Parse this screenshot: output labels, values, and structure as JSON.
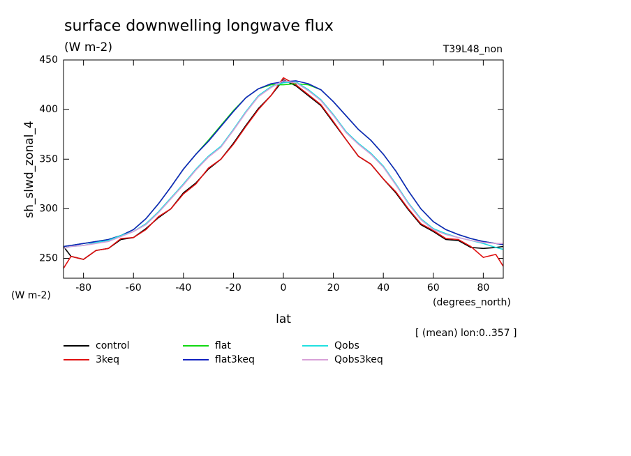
{
  "chart_data": {
    "type": "line",
    "title": "surface downwelling longwave flux",
    "subtitle": "(W m-2)",
    "run_label": "T39L48_non",
    "y_label": "sh_slwd_zonal_4",
    "y_units": "(W m-2)",
    "x_units": "(degrees_north)",
    "x_label": "lat",
    "annotation": "[ (mean) lon:0..357 ]",
    "legend": "bottom",
    "xlim": [
      -88,
      88
    ],
    "ylim": [
      230,
      450
    ],
    "xticks": [
      -80,
      -60,
      -40,
      -20,
      0,
      20,
      40,
      60,
      80
    ],
    "yticks": [
      250,
      300,
      350,
      400,
      450
    ],
    "x": [
      -88,
      -85,
      -80,
      -75,
      -70,
      -65,
      -60,
      -55,
      -50,
      -45,
      -40,
      -35,
      -30,
      -25,
      -20,
      -15,
      -10,
      -5,
      0,
      5,
      10,
      15,
      20,
      25,
      30,
      35,
      40,
      45,
      50,
      55,
      60,
      65,
      70,
      75,
      80,
      85,
      88
    ],
    "series": [
      {
        "name": "control",
        "color": "#000000",
        "values": [
          262,
          252,
          249,
          258,
          260,
          269,
          271,
          280,
          291,
          300,
          316,
          326,
          340,
          350,
          366,
          384,
          401,
          414,
          430,
          424,
          414,
          404,
          387,
          370,
          353,
          345,
          330,
          316,
          299,
          284,
          277,
          269,
          268,
          261,
          260,
          261,
          262
        ]
      },
      {
        "name": "3keq",
        "color": "#e01010",
        "values": [
          240,
          252,
          249,
          258,
          260,
          270,
          271,
          279,
          292,
          300,
          315,
          325,
          341,
          350,
          365,
          383,
          400,
          414,
          432,
          425,
          415,
          405,
          388,
          370,
          353,
          345,
          330,
          317,
          300,
          285,
          278,
          270,
          269,
          262,
          251,
          254,
          242
        ]
      },
      {
        "name": "flat",
        "color": "#10d810",
        "values": [
          262,
          263,
          265,
          267,
          269,
          273,
          279,
          290,
          305,
          322,
          340,
          355,
          369,
          384,
          399,
          412,
          421,
          425,
          425,
          426,
          425,
          420,
          408,
          394,
          380,
          369,
          355,
          338,
          318,
          300,
          287,
          279,
          274,
          270,
          267,
          265,
          264
        ]
      },
      {
        "name": "flat3keq",
        "color": "#1020c0",
        "values": [
          262,
          263,
          265,
          267,
          269,
          273,
          279,
          290,
          305,
          322,
          340,
          355,
          368,
          383,
          398,
          412,
          421,
          426,
          428,
          429,
          426,
          420,
          408,
          394,
          380,
          369,
          355,
          338,
          318,
          300,
          287,
          279,
          274,
          270,
          267,
          265,
          264
        ]
      },
      {
        "name": "Qobs",
        "color": "#20e0e0",
        "values": [
          260,
          262,
          263,
          266,
          268,
          273,
          277,
          285,
          297,
          311,
          325,
          340,
          353,
          363,
          380,
          398,
          414,
          423,
          427,
          428,
          420,
          410,
          395,
          378,
          366,
          356,
          343,
          325,
          306,
          290,
          280,
          275,
          271,
          268,
          265,
          261,
          259
        ]
      },
      {
        "name": "Qobs3keq",
        "color": "#d8a0d8",
        "values": [
          260,
          262,
          263,
          265,
          267,
          272,
          277,
          284,
          296,
          310,
          324,
          339,
          352,
          362,
          379,
          397,
          413,
          422,
          429,
          427,
          419,
          409,
          394,
          377,
          365,
          355,
          342,
          324,
          305,
          289,
          279,
          274,
          271,
          268,
          266,
          265,
          265
        ]
      }
    ]
  }
}
